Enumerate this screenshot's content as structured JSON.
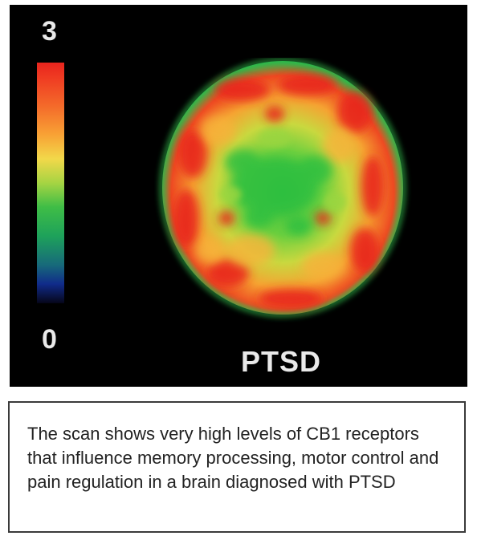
{
  "scan": {
    "scale_max": "3",
    "scale_min": "0",
    "diagnosis_label": "PTSD",
    "colormap": [
      "#e8241d",
      "#f46a2a",
      "#f8a235",
      "#f2d84a",
      "#a6d443",
      "#3fbd46",
      "#1ea25a",
      "#176a7a",
      "#102b8a",
      "#060619"
    ],
    "background_color": "#000000"
  },
  "caption": {
    "text": "The scan shows very high levels of CB1 receptors that influence memory processing, motor control and pain regulation in a brain diagnosed with PTSD"
  }
}
